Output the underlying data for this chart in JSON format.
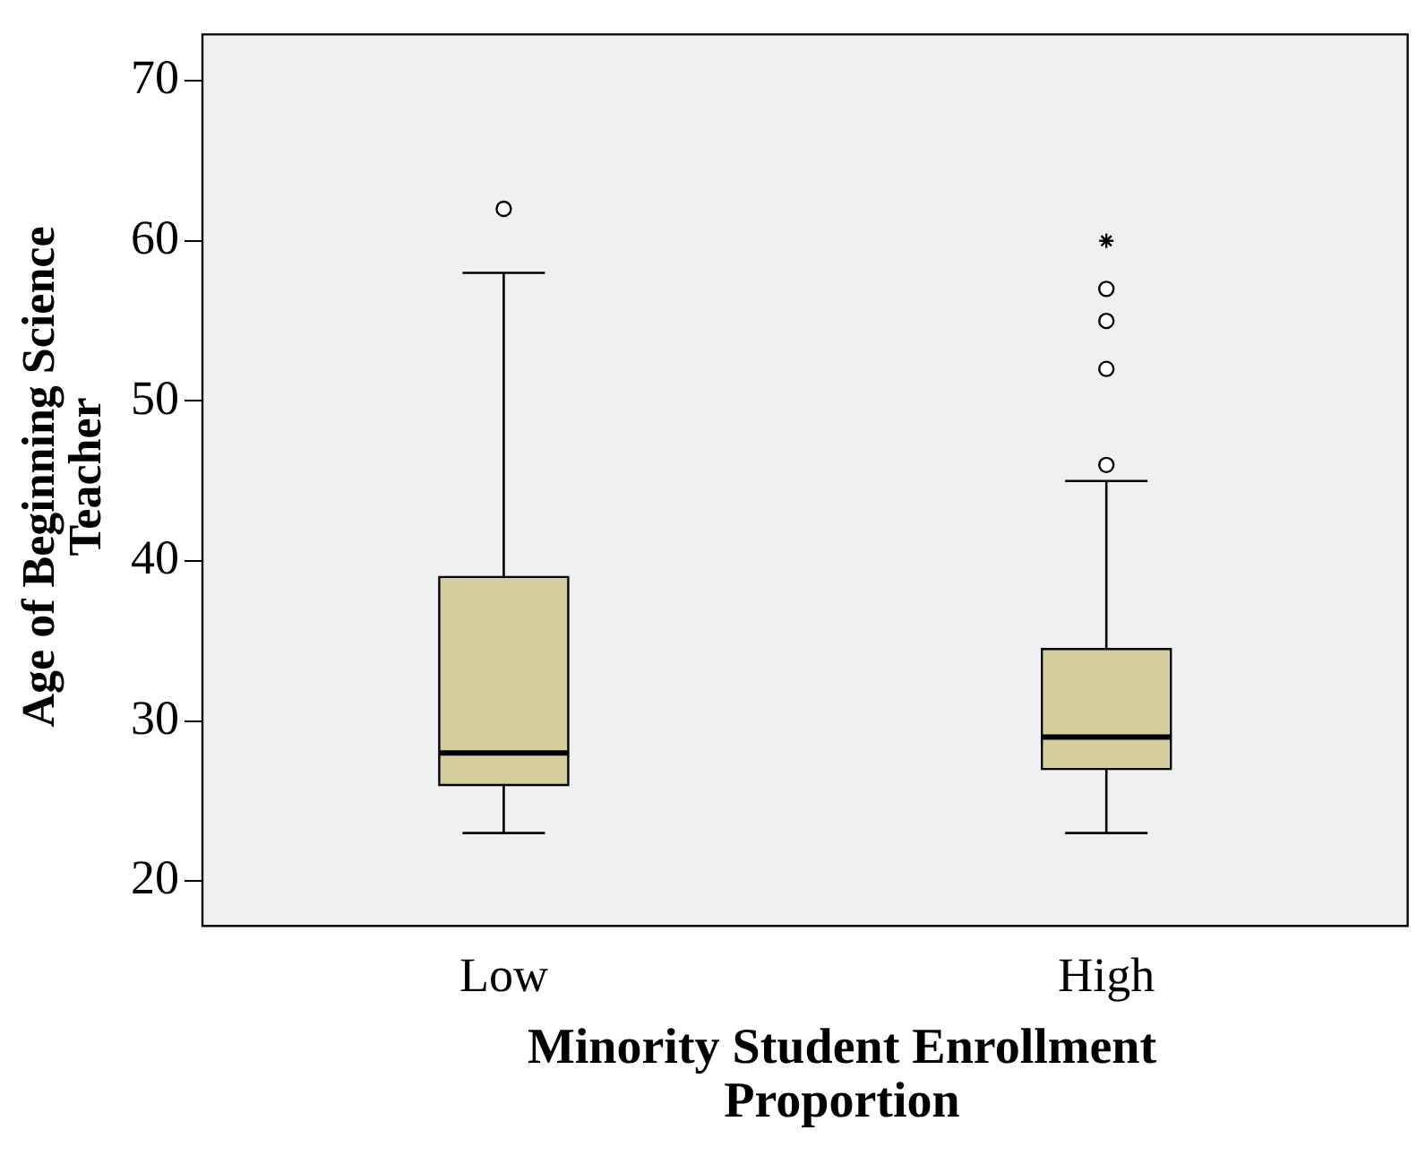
{
  "chart_data": {
    "type": "box",
    "xlabel": "Minority Student Enrollment Proportion",
    "ylabel": "Age of Beginning Science Teacher",
    "categories": [
      "Low",
      "High"
    ],
    "color": "#d3ce9b",
    "boxes": [
      {
        "low": 23,
        "q1": 26,
        "median": 28,
        "q3": 39,
        "high": 58,
        "outliers": [
          62
        ]
      },
      {
        "low": 23,
        "q1": 27,
        "median": 29,
        "q3": 34.5,
        "high": 45,
        "outliers": [
          46,
          52,
          55,
          57
        ]
      }
    ],
    "series": [
      {
        "type": "scatter",
        "x": [
          "High"
        ],
        "values": [
          60
        ],
        "marker": "cross",
        "color": "#000000"
      }
    ],
    "ylim": [
      17.2,
      72.9
    ],
    "yticks": [
      20,
      30,
      40,
      50,
      60,
      70
    ],
    "grid": false,
    "legend": false
  }
}
